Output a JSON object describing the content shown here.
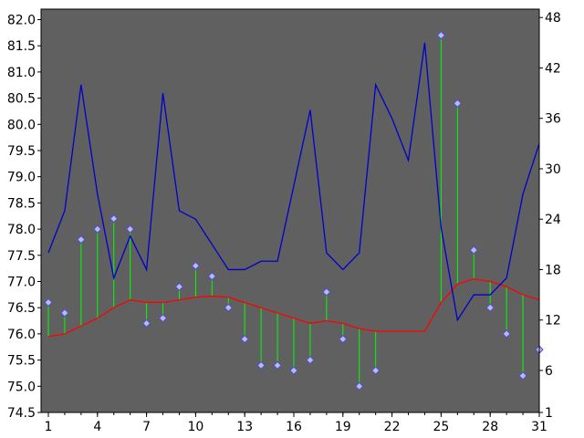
{
  "chart_data": {
    "type": "line",
    "title": "",
    "xlabel": "",
    "ylabel": "",
    "y2label": "",
    "x": [
      1,
      2,
      3,
      4,
      5,
      6,
      7,
      8,
      9,
      10,
      11,
      12,
      13,
      14,
      15,
      16,
      17,
      18,
      19,
      20,
      21,
      22,
      23,
      24,
      25,
      26,
      27,
      28,
      29,
      30,
      31
    ],
    "x_ticks": [
      1,
      4,
      7,
      10,
      13,
      16,
      19,
      22,
      25,
      28,
      31
    ],
    "ylim": [
      74.5,
      82.2
    ],
    "y_ticks": [
      74.5,
      75.0,
      75.5,
      76.0,
      76.5,
      77.0,
      77.5,
      78.0,
      78.5,
      79.0,
      79.5,
      80.0,
      80.5,
      81.0,
      81.5,
      82.0
    ],
    "y2lim": [
      1,
      49
    ],
    "y2_ticks": [
      1,
      6,
      12,
      18,
      24,
      30,
      36,
      42,
      48
    ],
    "grid": false,
    "legend": "none",
    "colors": {
      "plot_background": "#606060",
      "primary_line": "#0000cc",
      "moving_average": "#ff0000",
      "drop_lines": "#00ff00",
      "markers": "#b8b8ff",
      "marker_stroke": "#5050c0"
    },
    "series": [
      {
        "axis": "right",
        "style": "line",
        "values": [
          20,
          25,
          40,
          27,
          17,
          22,
          18,
          39,
          25,
          24,
          21,
          18,
          18,
          19,
          19,
          28,
          37,
          20,
          18,
          20,
          40,
          36,
          31,
          45,
          23,
          12,
          15,
          15,
          17,
          27,
          33
        ]
      },
      {
        "axis": "left",
        "style": "markers",
        "values": [
          76.6,
          76.4,
          77.8,
          78.0,
          78.2,
          78.0,
          76.2,
          76.3,
          76.9,
          77.3,
          77.1,
          76.5,
          75.9,
          75.4,
          75.4,
          75.3,
          75.5,
          76.8,
          75.9,
          75.0,
          75.3,
          null,
          null,
          null,
          81.7,
          80.4,
          77.6,
          76.5,
          76.0,
          75.2,
          75.7
        ]
      },
      {
        "axis": "left",
        "style": "line",
        "values": [
          75.95,
          76.0,
          76.15,
          76.3,
          76.5,
          76.65,
          76.6,
          76.6,
          76.65,
          76.7,
          76.72,
          76.7,
          76.6,
          76.5,
          76.4,
          76.3,
          76.2,
          76.25,
          76.2,
          76.1,
          76.05,
          76.05,
          76.05,
          76.05,
          76.6,
          76.95,
          77.05,
          77.0,
          76.9,
          76.75,
          76.65
        ]
      }
    ]
  }
}
